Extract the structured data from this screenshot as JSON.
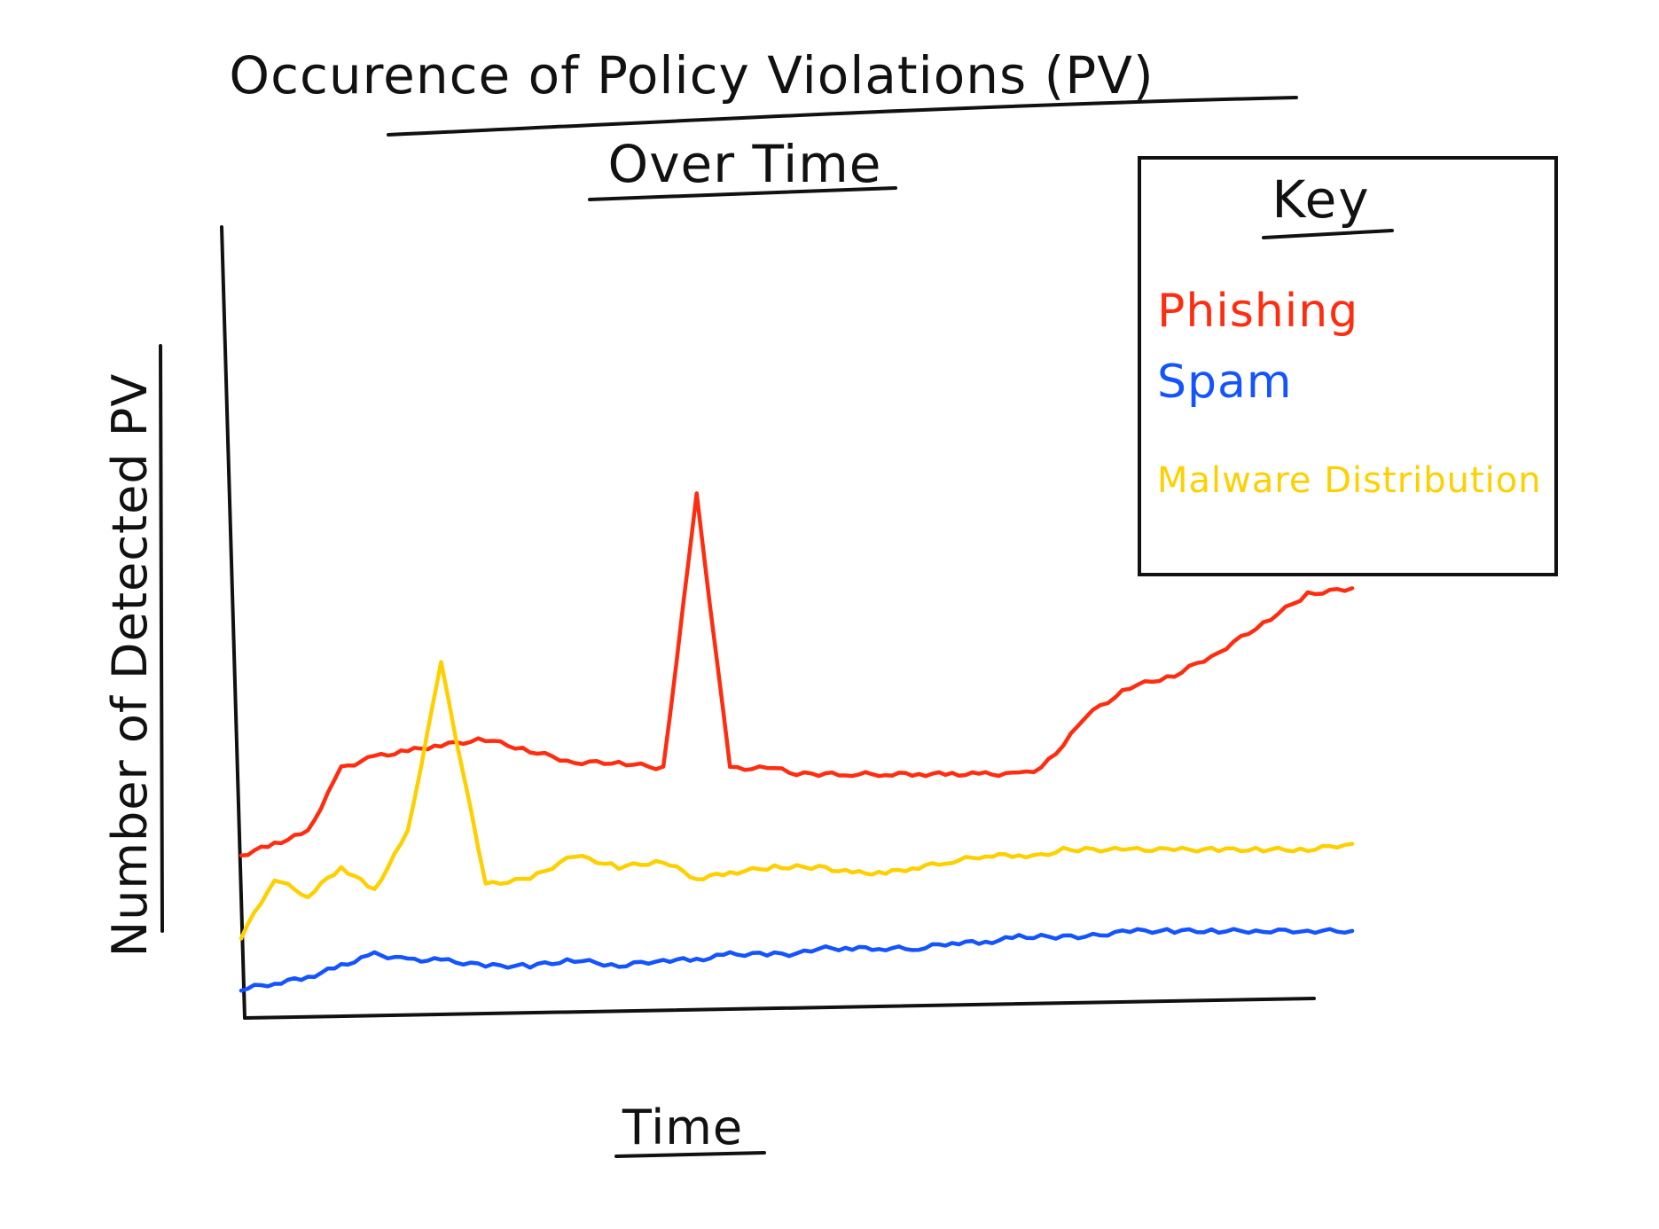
{
  "chart_data": {
    "type": "line",
    "title": "Occurence of Policy Violations (PV)",
    "subtitle": "Over Time",
    "xlabel": "Time",
    "ylabel": "Number of Detected PV",
    "x_ticks_shown": false,
    "y_ticks_shown": false,
    "grid": false,
    "legend": {
      "title": "Key",
      "position": "top-right"
    },
    "ylim": [
      0,
      100
    ],
    "x": [
      0,
      3,
      6,
      9,
      12,
      15,
      18,
      22,
      26,
      30,
      34,
      38,
      41,
      44,
      48,
      50,
      52,
      55,
      58,
      61,
      64,
      67,
      70,
      72,
      74,
      76,
      80,
      84,
      88,
      92,
      96,
      100
    ],
    "series": [
      {
        "name": "Phishing",
        "color": "#ff2d10",
        "values": [
          26,
          28,
          30,
          41,
          43,
          44,
          45,
          46,
          44,
          42,
          42,
          41,
          88,
          41,
          41,
          40,
          40,
          40,
          40,
          40,
          40,
          40,
          40,
          41,
          45,
          50,
          55,
          57,
          61,
          66,
          71,
          72
        ]
      },
      {
        "name": "Spam",
        "color": "#1454ff",
        "values": [
          3,
          4,
          5,
          7,
          9,
          8,
          8,
          7,
          7,
          8,
          7,
          8,
          8,
          9,
          9,
          9,
          10,
          10,
          10,
          10,
          11,
          11,
          12,
          12,
          12,
          12,
          13,
          13,
          13,
          13,
          13,
          13
        ]
      },
      {
        "name": "Malware Distribution",
        "color": "#ffd000",
        "values": [
          12,
          22,
          19,
          24,
          20,
          30,
          59,
          21,
          22,
          26,
          24,
          25,
          22,
          23,
          24,
          24,
          24,
          23,
          23,
          24,
          25,
          26,
          26,
          26,
          27,
          27,
          27,
          27,
          27,
          27,
          27,
          28
        ]
      }
    ]
  }
}
